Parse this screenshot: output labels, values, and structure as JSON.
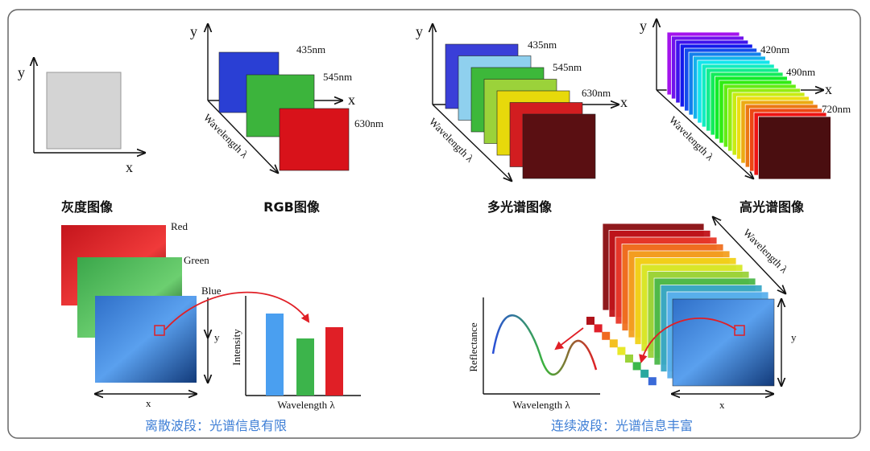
{
  "panels": [
    {
      "title": "灰度图像",
      "x_axis": "x",
      "y_axis": "y"
    },
    {
      "title": "RGB图像",
      "x_axis": "x",
      "y_axis": "y",
      "z_axis": "Wavelength λ",
      "bands": [
        "435nm",
        "545nm",
        "630nm"
      ]
    },
    {
      "title": "多光谱图像",
      "x_axis": "x",
      "y_axis": "y",
      "z_axis": "Wavelength λ",
      "bands": [
        "435nm",
        "545nm",
        "630nm"
      ]
    },
    {
      "title": "高光谱图像",
      "x_axis": "x",
      "y_axis": "y",
      "z_axis": "Wavelength λ",
      "bands": [
        "420nm",
        "490nm",
        "720nm"
      ]
    }
  ],
  "discrete": {
    "channels": [
      "Red",
      "Green",
      "Blue"
    ],
    "image_x": "x",
    "image_y": "y",
    "chart_y": "Intensity",
    "chart_x": "Wavelength λ",
    "caption": "离散波段：光谱信息有限"
  },
  "continuous": {
    "stack_axis": "Wavelength λ",
    "image_x": "x",
    "image_y": "y",
    "chart_y": "Reflectance",
    "chart_x": "Wavelength λ",
    "caption": "连续波段：光谱信息丰富"
  }
}
